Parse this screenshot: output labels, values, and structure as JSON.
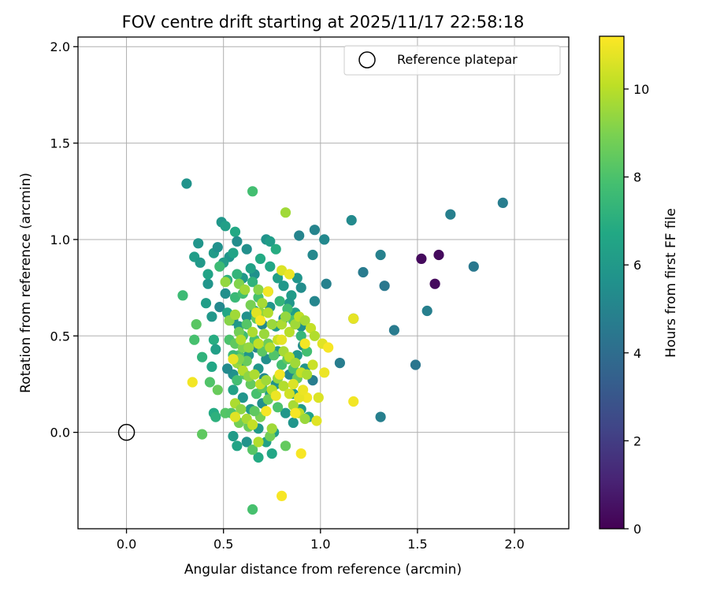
{
  "chart_data": {
    "type": "scatter",
    "title": "FOV centre drift starting at 2025/11/17 22:58:18",
    "xlabel": "Angular distance from reference (arcmin)",
    "ylabel": "Rotation from reference (arcmin)",
    "xlim": [
      -0.25,
      2.28
    ],
    "ylim": [
      -0.5,
      2.05
    ],
    "xticks": [
      0.0,
      0.5,
      1.0,
      1.5,
      2.0
    ],
    "xtick_labels": [
      "0.0",
      "0.5",
      "1.0",
      "1.5",
      "2.0"
    ],
    "yticks": [
      0.0,
      0.5,
      1.0,
      1.5,
      2.0
    ],
    "ytick_labels": [
      "0.0",
      "0.5",
      "1.0",
      "1.5",
      "2.0"
    ],
    "grid": true,
    "legend": {
      "position": "top-right",
      "entries": [
        "Reference platepar"
      ]
    },
    "reference_point": {
      "x": 0.0,
      "y": 0.0,
      "label": "Reference platepar"
    },
    "colorbar": {
      "label": "Hours from first FF file",
      "colormap": "viridis",
      "min": 0,
      "max": 11.2,
      "ticks": [
        0,
        2,
        4,
        6,
        8,
        10
      ],
      "tick_labels": [
        "0",
        "2",
        "4",
        "6",
        "8",
        "10"
      ]
    },
    "points": [
      [
        1.52,
        0.9,
        0.3
      ],
      [
        1.61,
        0.92,
        0.3
      ],
      [
        1.59,
        0.77,
        0.3
      ],
      [
        1.94,
        1.19,
        4.7
      ],
      [
        1.67,
        1.13,
        4.8
      ],
      [
        1.79,
        0.86,
        4.5
      ],
      [
        1.55,
        0.63,
        4.8
      ],
      [
        1.38,
        0.53,
        4.6
      ],
      [
        1.49,
        0.35,
        4.4
      ],
      [
        1.31,
        0.92,
        4.9
      ],
      [
        1.33,
        0.76,
        4.5
      ],
      [
        1.22,
        0.83,
        4.6
      ],
      [
        1.31,
        0.08,
        4.8
      ],
      [
        1.1,
        0.36,
        4.7
      ],
      [
        1.17,
        0.59,
        4.5
      ],
      [
        1.16,
        1.1,
        5.3
      ],
      [
        0.97,
        1.05,
        5.0
      ],
      [
        1.02,
        1.0,
        5.2
      ],
      [
        0.89,
        1.02,
        5.0
      ],
      [
        0.96,
        0.92,
        5.2
      ],
      [
        1.03,
        0.77,
        4.9
      ],
      [
        0.97,
        0.68,
        5.1
      ],
      [
        0.96,
        0.27,
        4.7
      ],
      [
        0.31,
        1.29,
        5.7
      ],
      [
        0.35,
        0.91,
        6.2
      ],
      [
        0.37,
        0.98,
        5.8
      ],
      [
        0.38,
        0.88,
        6.0
      ],
      [
        0.42,
        0.77,
        5.8
      ],
      [
        0.45,
        0.93,
        6.1
      ],
      [
        0.47,
        0.96,
        5.6
      ],
      [
        0.49,
        1.09,
        5.9
      ],
      [
        0.51,
        1.07,
        6.3
      ],
      [
        0.56,
        1.04,
        6.7
      ],
      [
        0.57,
        0.99,
        5.4
      ],
      [
        0.53,
        0.91,
        5.8
      ],
      [
        0.5,
        0.88,
        6.2
      ],
      [
        0.55,
        0.93,
        6.5
      ],
      [
        0.62,
        0.95,
        5.5
      ],
      [
        0.66,
        0.82,
        5.6
      ],
      [
        0.6,
        0.8,
        6.0
      ],
      [
        0.64,
        0.85,
        6.4
      ],
      [
        0.69,
        0.9,
        6.8
      ],
      [
        0.72,
        1.0,
        5.7
      ],
      [
        0.74,
        0.99,
        6.2
      ],
      [
        0.77,
        0.95,
        6.9
      ],
      [
        0.74,
        0.86,
        6.6
      ],
      [
        0.78,
        0.8,
        6.3
      ],
      [
        0.81,
        0.76,
        5.9
      ],
      [
        0.85,
        0.71,
        6.1
      ],
      [
        0.9,
        0.75,
        5.4
      ],
      [
        0.88,
        0.8,
        5.8
      ],
      [
        0.51,
        0.72,
        5.5
      ],
      [
        0.48,
        0.65,
        5.2
      ],
      [
        0.44,
        0.6,
        5.9
      ],
      [
        0.41,
        0.67,
        6.2
      ],
      [
        0.52,
        0.62,
        6.6
      ],
      [
        0.55,
        0.58,
        5.4
      ],
      [
        0.58,
        0.55,
        6.0
      ],
      [
        0.62,
        0.6,
        5.6
      ],
      [
        0.66,
        0.63,
        6.3
      ],
      [
        0.7,
        0.56,
        5.3
      ],
      [
        0.74,
        0.65,
        5.8
      ],
      [
        0.77,
        0.55,
        6.1
      ],
      [
        0.81,
        0.59,
        5.5
      ],
      [
        0.84,
        0.67,
        5.9
      ],
      [
        0.87,
        0.62,
        6.3
      ],
      [
        0.9,
        0.55,
        5.6
      ],
      [
        0.91,
        0.45,
        5.4
      ],
      [
        0.88,
        0.4,
        6.0
      ],
      [
        0.92,
        0.33,
        5.7
      ],
      [
        0.84,
        0.3,
        5.3
      ],
      [
        0.78,
        0.42,
        5.9
      ],
      [
        0.72,
        0.38,
        5.5
      ],
      [
        0.67,
        0.44,
        5.1
      ],
      [
        0.63,
        0.4,
        5.8
      ],
      [
        0.59,
        0.35,
        6.2
      ],
      [
        0.55,
        0.3,
        5.6
      ],
      [
        0.52,
        0.33,
        5.3
      ],
      [
        0.55,
        0.22,
        6.4
      ],
      [
        0.6,
        0.18,
        5.8
      ],
      [
        0.64,
        0.12,
        6.0
      ],
      [
        0.7,
        0.15,
        5.5
      ],
      [
        0.74,
        0.2,
        6.2
      ],
      [
        0.77,
        0.25,
        5.7
      ],
      [
        0.71,
        0.28,
        5.3
      ],
      [
        0.68,
        0.33,
        5.9
      ],
      [
        0.86,
        0.05,
        5.8
      ],
      [
        0.76,
        0.0,
        6.3
      ],
      [
        0.68,
        0.02,
        6.0
      ],
      [
        0.62,
        -0.05,
        5.7
      ],
      [
        0.55,
        -0.02,
        6.1
      ],
      [
        0.57,
        -0.07,
        6.5
      ],
      [
        0.68,
        -0.13,
        6.8
      ],
      [
        0.72,
        -0.05,
        6.4
      ],
      [
        0.75,
        -0.11,
        6.6
      ],
      [
        0.86,
        0.2,
        6.2
      ],
      [
        0.82,
        0.1,
        5.9
      ],
      [
        0.9,
        0.12,
        6.1
      ],
      [
        0.94,
        0.08,
        6.5
      ],
      [
        0.45,
        0.48,
        6.9
      ],
      [
        0.44,
        0.34,
        6.6
      ],
      [
        0.46,
        0.43,
        6.3
      ],
      [
        0.45,
        0.1,
        6.8
      ],
      [
        0.46,
        0.08,
        7.1
      ],
      [
        0.39,
        0.39,
        7.2
      ],
      [
        0.42,
        0.82,
        6.5
      ],
      [
        0.65,
        1.25,
        7.8
      ],
      [
        0.57,
        0.82,
        7.3
      ],
      [
        0.48,
        0.86,
        7.6
      ],
      [
        0.52,
        0.79,
        7.1
      ],
      [
        0.56,
        0.7,
        7.5
      ],
      [
        0.6,
        0.72,
        7.8
      ],
      [
        0.65,
        0.78,
        7.2
      ],
      [
        0.68,
        0.7,
        7.9
      ],
      [
        0.73,
        0.73,
        7.6
      ],
      [
        0.79,
        0.68,
        7.3
      ],
      [
        0.83,
        0.64,
        7.7
      ],
      [
        0.86,
        0.58,
        8.0
      ],
      [
        0.9,
        0.5,
        7.4
      ],
      [
        0.93,
        0.42,
        7.8
      ],
      [
        0.29,
        0.71,
        7.6
      ],
      [
        0.35,
        0.48,
        7.9
      ],
      [
        0.36,
        0.56,
        8.3
      ],
      [
        0.43,
        0.26,
        8.1
      ],
      [
        0.39,
        -0.01,
        8.4
      ],
      [
        0.47,
        0.22,
        8.6
      ],
      [
        0.51,
        0.1,
        8.2
      ],
      [
        0.53,
        0.48,
        8.0
      ],
      [
        0.56,
        0.46,
        8.4
      ],
      [
        0.6,
        0.5,
        7.7
      ],
      [
        0.58,
        0.4,
        8.2
      ],
      [
        0.62,
        0.37,
        8.6
      ],
      [
        0.66,
        0.48,
        7.9
      ],
      [
        0.7,
        0.42,
        8.3
      ],
      [
        0.73,
        0.46,
        8.7
      ],
      [
        0.76,
        0.4,
        8.1
      ],
      [
        0.8,
        0.35,
        7.8
      ],
      [
        0.83,
        0.38,
        8.4
      ],
      [
        0.86,
        0.33,
        8.0
      ],
      [
        0.88,
        0.28,
        8.6
      ],
      [
        0.55,
        0.4,
        7.5
      ],
      [
        0.57,
        0.27,
        7.8
      ],
      [
        0.61,
        0.3,
        8.2
      ],
      [
        0.64,
        0.25,
        8.5
      ],
      [
        0.67,
        0.2,
        7.9
      ],
      [
        0.7,
        0.23,
        8.3
      ],
      [
        0.73,
        0.17,
        8.7
      ],
      [
        0.78,
        0.13,
        8.0
      ],
      [
        0.82,
        -0.07,
        8.5
      ],
      [
        0.74,
        -0.02,
        8.8
      ],
      [
        0.65,
        -0.09,
        8.2
      ],
      [
        0.63,
        0.03,
        8.6
      ],
      [
        0.69,
        0.08,
        8.9
      ],
      [
        0.66,
        0.11,
        8.4
      ],
      [
        0.58,
        0.05,
        8.8
      ],
      [
        0.54,
        0.1,
        8.1
      ],
      [
        0.65,
        -0.4,
        7.9
      ],
      [
        0.58,
        0.52,
        8.8
      ],
      [
        0.62,
        0.56,
        8.2
      ],
      [
        0.6,
        0.44,
        9.0
      ],
      [
        0.64,
        0.66,
        8.9
      ],
      [
        0.67,
        0.59,
        8.5
      ],
      [
        0.82,
        1.14,
        9.6
      ],
      [
        0.51,
        0.78,
        9.4
      ],
      [
        0.58,
        0.77,
        9.1
      ],
      [
        0.61,
        0.74,
        9.6
      ],
      [
        0.68,
        0.74,
        9.2
      ],
      [
        0.7,
        0.67,
        9.7
      ],
      [
        0.69,
        0.62,
        9.3
      ],
      [
        0.73,
        0.62,
        9.9
      ],
      [
        0.75,
        0.56,
        9.5
      ],
      [
        0.8,
        0.56,
        9.8
      ],
      [
        0.82,
        0.6,
        9.4
      ],
      [
        0.84,
        0.52,
        10.0
      ],
      [
        0.87,
        0.56,
        9.6
      ],
      [
        0.89,
        0.6,
        10.1
      ],
      [
        0.92,
        0.58,
        9.7
      ],
      [
        0.95,
        0.54,
        10.2
      ],
      [
        0.97,
        0.5,
        9.9
      ],
      [
        0.53,
        0.58,
        9.2
      ],
      [
        0.56,
        0.61,
        9.6
      ],
      [
        0.59,
        0.48,
        9.9
      ],
      [
        0.63,
        0.44,
        9.4
      ],
      [
        0.65,
        0.52,
        9.8
      ],
      [
        0.68,
        0.46,
        10.1
      ],
      [
        0.71,
        0.51,
        9.5
      ],
      [
        0.74,
        0.44,
        9.9
      ],
      [
        0.78,
        0.48,
        10.3
      ],
      [
        0.81,
        0.42,
        9.7
      ],
      [
        0.84,
        0.39,
        10.0
      ],
      [
        0.87,
        0.36,
        9.6
      ],
      [
        0.9,
        0.31,
        10.2
      ],
      [
        0.93,
        0.3,
        9.8
      ],
      [
        0.96,
        0.35,
        10.3
      ],
      [
        0.57,
        0.36,
        9.5
      ],
      [
        0.6,
        0.32,
        9.9
      ],
      [
        0.63,
        0.29,
        9.3
      ],
      [
        0.66,
        0.3,
        9.8
      ],
      [
        0.69,
        0.25,
        10.2
      ],
      [
        0.72,
        0.27,
        9.6
      ],
      [
        0.75,
        0.22,
        10.0
      ],
      [
        0.78,
        0.28,
        9.4
      ],
      [
        0.81,
        0.24,
        9.9
      ],
      [
        0.84,
        0.2,
        10.4
      ],
      [
        0.86,
        0.14,
        9.7
      ],
      [
        0.89,
        0.1,
        10.1
      ],
      [
        0.92,
        0.07,
        9.5
      ],
      [
        0.56,
        0.15,
        9.8
      ],
      [
        0.59,
        0.12,
        9.3
      ],
      [
        0.62,
        0.07,
        9.7
      ],
      [
        0.65,
        0.04,
        10.2
      ],
      [
        0.75,
        0.02,
        9.6
      ],
      [
        0.68,
        -0.05,
        9.9
      ],
      [
        0.58,
        0.38,
        9.1
      ],
      [
        0.34,
        0.26,
        11.0
      ],
      [
        0.8,
        -0.33,
        11.1
      ],
      [
        1.17,
        0.16,
        11.0
      ],
      [
        1.17,
        0.59,
        10.8
      ],
      [
        0.9,
        -0.11,
        11.1
      ],
      [
        0.8,
        0.84,
        10.6
      ],
      [
        0.84,
        0.82,
        10.9
      ],
      [
        0.73,
        0.73,
        11.0
      ],
      [
        0.67,
        0.62,
        10.7
      ],
      [
        0.69,
        0.58,
        11.1
      ],
      [
        0.8,
        0.48,
        10.8
      ],
      [
        0.92,
        0.46,
        11.0
      ],
      [
        1.01,
        0.46,
        10.7
      ],
      [
        1.04,
        0.44,
        11.1
      ],
      [
        1.02,
        0.31,
        10.9
      ],
      [
        0.99,
        0.18,
        10.6
      ],
      [
        0.93,
        0.18,
        11.0
      ],
      [
        0.89,
        0.18,
        10.8
      ],
      [
        0.87,
        0.1,
        11.1
      ],
      [
        0.98,
        0.06,
        10.7
      ],
      [
        0.77,
        0.19,
        10.9
      ],
      [
        0.72,
        0.11,
        11.1
      ],
      [
        0.56,
        0.08,
        10.7
      ],
      [
        0.55,
        0.38,
        10.8
      ],
      [
        0.79,
        0.3,
        11.0
      ],
      [
        0.86,
        0.25,
        10.6
      ],
      [
        0.91,
        0.22,
        10.9
      ]
    ]
  }
}
